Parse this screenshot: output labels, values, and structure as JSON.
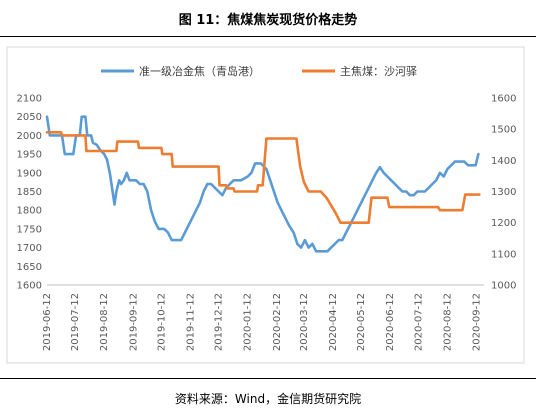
{
  "header": {
    "title": "图 11：焦煤焦炭现货价格走势"
  },
  "footer": {
    "source": "资料来源：Wind，金信期货研究院"
  },
  "chart_data": {
    "type": "line",
    "legend_position": "top",
    "grid": false,
    "x_ticks": [
      "2019-06-12",
      "2019-07-12",
      "2019-08-12",
      "2019-09-12",
      "2019-10-12",
      "2019-11-12",
      "2019-12-12",
      "2020-01-12",
      "2020-02-12",
      "2020-03-12",
      "2020-04-12",
      "2020-05-12",
      "2020-06-12",
      "2020-07-12",
      "2020-08-12",
      "2020-09-12"
    ],
    "x_range": [
      "2019-06-12",
      "2020-09-20"
    ],
    "y_left": {
      "min": 1600,
      "max": 2100,
      "step": 50
    },
    "y_right": {
      "min": 1000,
      "max": 1600,
      "step": 100
    },
    "series": [
      {
        "name": "准一级冶金焦（青岛港）",
        "axis": "left",
        "color": "#5B9BD5",
        "points": [
          [
            "2019-06-12",
            2050
          ],
          [
            "2019-06-15",
            2000
          ],
          [
            "2019-06-28",
            2000
          ],
          [
            "2019-07-01",
            1950
          ],
          [
            "2019-07-10",
            1950
          ],
          [
            "2019-07-13",
            2000
          ],
          [
            "2019-07-17",
            2000
          ],
          [
            "2019-07-19",
            2050
          ],
          [
            "2019-07-23",
            2050
          ],
          [
            "2019-07-25",
            2000
          ],
          [
            "2019-07-29",
            2000
          ],
          [
            "2019-07-31",
            1980
          ],
          [
            "2019-08-04",
            1975
          ],
          [
            "2019-08-08",
            1960
          ],
          [
            "2019-08-12",
            1950
          ],
          [
            "2019-08-15",
            1935
          ],
          [
            "2019-08-18",
            1900
          ],
          [
            "2019-08-21",
            1850
          ],
          [
            "2019-08-23",
            1815
          ],
          [
            "2019-08-25",
            1850
          ],
          [
            "2019-08-28",
            1880
          ],
          [
            "2019-08-30",
            1870
          ],
          [
            "2019-09-02",
            1880
          ],
          [
            "2019-09-05",
            1900
          ],
          [
            "2019-09-08",
            1880
          ],
          [
            "2019-09-11",
            1880
          ],
          [
            "2019-09-15",
            1880
          ],
          [
            "2019-09-19",
            1870
          ],
          [
            "2019-09-23",
            1870
          ],
          [
            "2019-09-27",
            1850
          ],
          [
            "2019-10-01",
            1800
          ],
          [
            "2019-10-05",
            1770
          ],
          [
            "2019-10-09",
            1750
          ],
          [
            "2019-10-15",
            1750
          ],
          [
            "2019-10-19",
            1740
          ],
          [
            "2019-10-23",
            1720
          ],
          [
            "2019-11-02",
            1720
          ],
          [
            "2019-11-06",
            1740
          ],
          [
            "2019-11-10",
            1760
          ],
          [
            "2019-11-14",
            1780
          ],
          [
            "2019-11-18",
            1800
          ],
          [
            "2019-11-22",
            1820
          ],
          [
            "2019-11-26",
            1850
          ],
          [
            "2019-11-30",
            1870
          ],
          [
            "2019-12-04",
            1870
          ],
          [
            "2019-12-08",
            1860
          ],
          [
            "2019-12-12",
            1850
          ],
          [
            "2019-12-16",
            1840
          ],
          [
            "2019-12-20",
            1860
          ],
          [
            "2019-12-24",
            1870
          ],
          [
            "2019-12-28",
            1880
          ],
          [
            "2020-01-05",
            1880
          ],
          [
            "2020-01-12",
            1890
          ],
          [
            "2020-01-16",
            1900
          ],
          [
            "2020-01-20",
            1925
          ],
          [
            "2020-01-26",
            1925
          ],
          [
            "2020-02-01",
            1910
          ],
          [
            "2020-02-05",
            1880
          ],
          [
            "2020-02-09",
            1850
          ],
          [
            "2020-02-13",
            1820
          ],
          [
            "2020-02-17",
            1800
          ],
          [
            "2020-02-21",
            1780
          ],
          [
            "2020-02-25",
            1760
          ],
          [
            "2020-03-01",
            1740
          ],
          [
            "2020-03-05",
            1710
          ],
          [
            "2020-03-09",
            1700
          ],
          [
            "2020-03-13",
            1720
          ],
          [
            "2020-03-17",
            1700
          ],
          [
            "2020-03-21",
            1710
          ],
          [
            "2020-03-25",
            1690
          ],
          [
            "2020-04-06",
            1690
          ],
          [
            "2020-04-10",
            1700
          ],
          [
            "2020-04-14",
            1710
          ],
          [
            "2020-04-18",
            1720
          ],
          [
            "2020-04-22",
            1720
          ],
          [
            "2020-04-26",
            1740
          ],
          [
            "2020-04-30",
            1760
          ],
          [
            "2020-05-04",
            1780
          ],
          [
            "2020-05-08",
            1800
          ],
          [
            "2020-05-12",
            1820
          ],
          [
            "2020-05-16",
            1840
          ],
          [
            "2020-05-20",
            1860
          ],
          [
            "2020-05-24",
            1880
          ],
          [
            "2020-05-28",
            1900
          ],
          [
            "2020-06-01",
            1915
          ],
          [
            "2020-06-05",
            1900
          ],
          [
            "2020-06-09",
            1890
          ],
          [
            "2020-06-13",
            1880
          ],
          [
            "2020-06-17",
            1870
          ],
          [
            "2020-06-21",
            1860
          ],
          [
            "2020-06-25",
            1850
          ],
          [
            "2020-06-29",
            1850
          ],
          [
            "2020-07-03",
            1840
          ],
          [
            "2020-07-07",
            1840
          ],
          [
            "2020-07-11",
            1850
          ],
          [
            "2020-07-19",
            1850
          ],
          [
            "2020-07-23",
            1860
          ],
          [
            "2020-07-27",
            1870
          ],
          [
            "2020-07-31",
            1880
          ],
          [
            "2020-08-04",
            1900
          ],
          [
            "2020-08-08",
            1890
          ],
          [
            "2020-08-12",
            1910
          ],
          [
            "2020-08-16",
            1920
          ],
          [
            "2020-08-20",
            1930
          ],
          [
            "2020-08-30",
            1930
          ],
          [
            "2020-09-03",
            1920
          ],
          [
            "2020-09-11",
            1920
          ],
          [
            "2020-09-14",
            1950
          ]
        ]
      },
      {
        "name": "主焦煤：沙河驿",
        "axis": "right",
        "color": "#ED7D31",
        "points": [
          [
            "2019-06-12",
            1490
          ],
          [
            "2019-06-27",
            1490
          ],
          [
            "2019-06-28",
            1480
          ],
          [
            "2019-07-23",
            1480
          ],
          [
            "2019-07-24",
            1430
          ],
          [
            "2019-08-25",
            1430
          ],
          [
            "2019-08-26",
            1460
          ],
          [
            "2019-09-17",
            1460
          ],
          [
            "2019-09-18",
            1440
          ],
          [
            "2019-10-12",
            1440
          ],
          [
            "2019-10-13",
            1420
          ],
          [
            "2019-10-23",
            1420
          ],
          [
            "2019-10-24",
            1380
          ],
          [
            "2019-12-12",
            1380
          ],
          [
            "2019-12-13",
            1320
          ],
          [
            "2019-12-20",
            1320
          ],
          [
            "2019-12-21",
            1310
          ],
          [
            "2019-12-28",
            1310
          ],
          [
            "2019-12-29",
            1300
          ],
          [
            "2020-01-22",
            1300
          ],
          [
            "2020-01-23",
            1320
          ],
          [
            "2020-01-28",
            1320
          ],
          [
            "2020-02-01",
            1470
          ],
          [
            "2020-03-04",
            1470
          ],
          [
            "2020-03-08",
            1380
          ],
          [
            "2020-03-12",
            1330
          ],
          [
            "2020-03-17",
            1300
          ],
          [
            "2020-03-30",
            1300
          ],
          [
            "2020-04-05",
            1280
          ],
          [
            "2020-04-11",
            1250
          ],
          [
            "2020-04-15",
            1230
          ],
          [
            "2020-04-20",
            1200
          ],
          [
            "2020-05-20",
            1200
          ],
          [
            "2020-05-23",
            1280
          ],
          [
            "2020-06-09",
            1280
          ],
          [
            "2020-06-11",
            1250
          ],
          [
            "2020-08-02",
            1250
          ],
          [
            "2020-08-04",
            1240
          ],
          [
            "2020-08-28",
            1240
          ],
          [
            "2020-08-31",
            1290
          ],
          [
            "2020-09-15",
            1290
          ]
        ]
      }
    ]
  }
}
